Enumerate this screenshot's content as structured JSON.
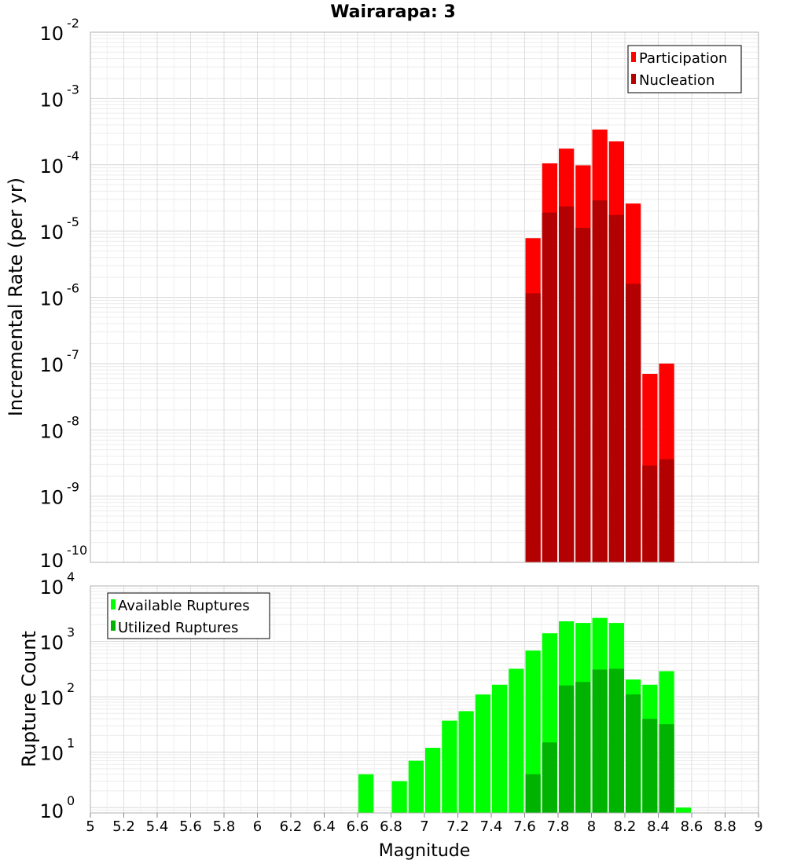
{
  "title": "Wairarapa: 3",
  "x_label": "Magnitude",
  "x_ticks": [
    "5",
    "5.2",
    "5.4",
    "5.6",
    "5.8",
    "6",
    "6.2",
    "6.4",
    "6.6",
    "6.8",
    "7",
    "7.2",
    "7.4",
    "7.6",
    "7.8",
    "8",
    "8.2",
    "8.4",
    "8.6",
    "8.8",
    "9"
  ],
  "colors": {
    "participation": "#ff0000",
    "nucleation": "#b30000",
    "available": "#00ff00",
    "utilized": "#00b300"
  },
  "chart_data": [
    {
      "type": "bar",
      "ylabel": "Incremental Rate (per yr)",
      "xlabel": "Magnitude",
      "yscale": "log",
      "ylim": [
        1e-10,
        0.01
      ],
      "xlim": [
        5,
        9
      ],
      "y_tick_exponents": [
        "-2",
        "-3",
        "-4",
        "-5",
        "-6",
        "-7",
        "-8",
        "-9",
        "-10"
      ],
      "legend": "top-right",
      "grid": true,
      "x": [
        7.65,
        7.75,
        7.85,
        7.95,
        8.05,
        8.15,
        8.25,
        8.35,
        8.45
      ],
      "series": [
        {
          "name": "Participation",
          "values": [
            7.8e-06,
            0.000105,
            0.000175,
            9.8e-05,
            0.00034,
            0.000225,
            2.6e-05,
            7e-08,
            1e-07
          ]
        },
        {
          "name": "Nucleation",
          "values": [
            1.15e-06,
            1.9e-05,
            2.35e-05,
            1.12e-05,
            2.9e-05,
            1.75e-05,
            1.6e-06,
            2.9e-09,
            3.6e-09
          ]
        }
      ]
    },
    {
      "type": "bar",
      "ylabel": "Rupture Count",
      "xlabel": "Magnitude",
      "yscale": "log",
      "ylim": [
        0.8,
        10000
      ],
      "xlim": [
        5,
        9
      ],
      "y_tick_exponents": [
        "4",
        "3",
        "2",
        "1",
        "0"
      ],
      "legend": "top-left",
      "grid": true,
      "x": [
        6.65,
        6.75,
        6.85,
        6.95,
        7.05,
        7.15,
        7.25,
        7.35,
        7.45,
        7.55,
        7.65,
        7.75,
        7.85,
        7.95,
        8.05,
        8.15,
        8.25,
        8.35,
        8.45,
        8.55
      ],
      "series": [
        {
          "name": "Available Ruptures",
          "values": [
            4,
            0,
            3,
            7,
            12,
            37,
            55,
            110,
            165,
            320,
            680,
            1400,
            2300,
            2150,
            2650,
            2150,
            205,
            165,
            290,
            1
          ]
        },
        {
          "name": "Utilized Ruptures",
          "values": [
            0,
            0,
            0,
            0,
            0,
            0,
            0,
            0,
            0,
            0,
            4,
            15,
            160,
            185,
            310,
            320,
            110,
            40,
            32,
            0
          ]
        }
      ]
    }
  ]
}
